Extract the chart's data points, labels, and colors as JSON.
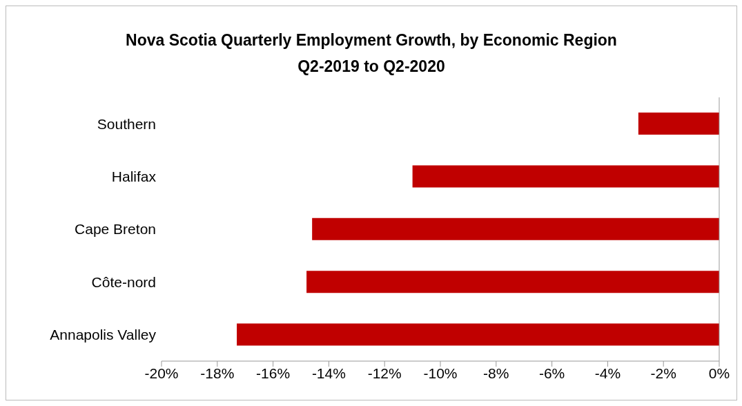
{
  "chart_data": {
    "type": "bar",
    "orientation": "horizontal",
    "title": "Nova Scotia Quarterly Employment Growth, by Economic Region\nQ2-2019 to Q2-2020",
    "categories": [
      "Southern",
      "Halifax",
      "Cape Breton",
      "Côte-nord",
      "Annapolis Valley"
    ],
    "values": [
      -2.9,
      -11.0,
      -14.6,
      -14.8,
      -17.3
    ],
    "color": "#c00000",
    "xlim": [
      -20,
      0
    ],
    "xticks": [
      {
        "value": -20,
        "label": "-20%"
      },
      {
        "value": -18,
        "label": "-18%"
      },
      {
        "value": -16,
        "label": "-16%"
      },
      {
        "value": -14,
        "label": "-14%"
      },
      {
        "value": -12,
        "label": "-12%"
      },
      {
        "value": -10,
        "label": "-10%"
      },
      {
        "value": -8,
        "label": "-8%"
      },
      {
        "value": -6,
        "label": "-6%"
      },
      {
        "value": -4,
        "label": "-4%"
      },
      {
        "value": -2,
        "label": "-2%"
      },
      {
        "value": 0,
        "label": "0%"
      }
    ],
    "grid": false,
    "legend": false
  }
}
